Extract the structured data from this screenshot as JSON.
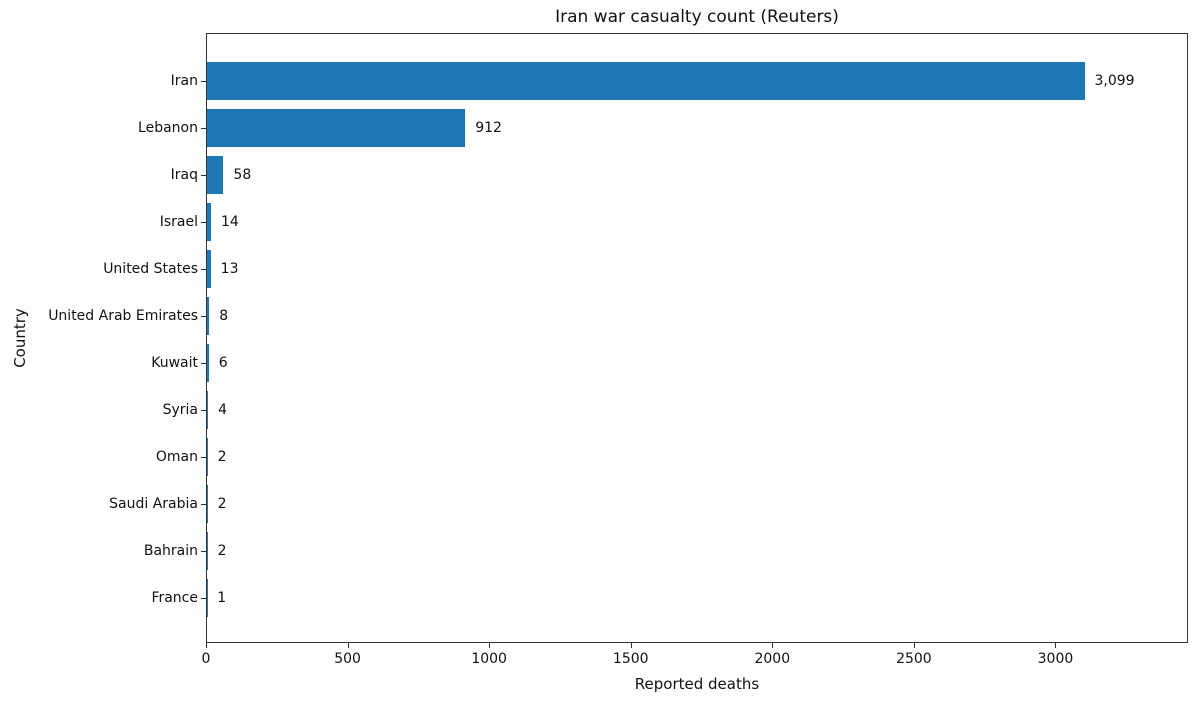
{
  "chart_data": {
    "type": "bar",
    "orientation": "horizontal",
    "title": "Iran war casualty count (Reuters)",
    "xlabel": "Reported deaths",
    "ylabel": "Country",
    "categories": [
      "Iran",
      "Lebanon",
      "Iraq",
      "Israel",
      "United States",
      "United Arab Emirates",
      "Kuwait",
      "Syria",
      "Oman",
      "Saudi Arabia",
      "Bahrain",
      "France"
    ],
    "values": [
      3099,
      912,
      58,
      14,
      13,
      8,
      6,
      4,
      2,
      2,
      2,
      1
    ],
    "value_labels": [
      "3,099",
      "912",
      "58",
      "14",
      "13",
      "8",
      "6",
      "4",
      "2",
      "2",
      "2",
      "1"
    ],
    "xticks": [
      0,
      500,
      1000,
      1500,
      2000,
      2500,
      3000
    ],
    "xtick_labels": [
      "0",
      "500",
      "1000",
      "1500",
      "2000",
      "2500",
      "3000"
    ],
    "xlim": [
      0,
      3468
    ],
    "bar_color": "#1f77b4",
    "background_color": "#ffffff",
    "grid": false,
    "legend": null
  }
}
